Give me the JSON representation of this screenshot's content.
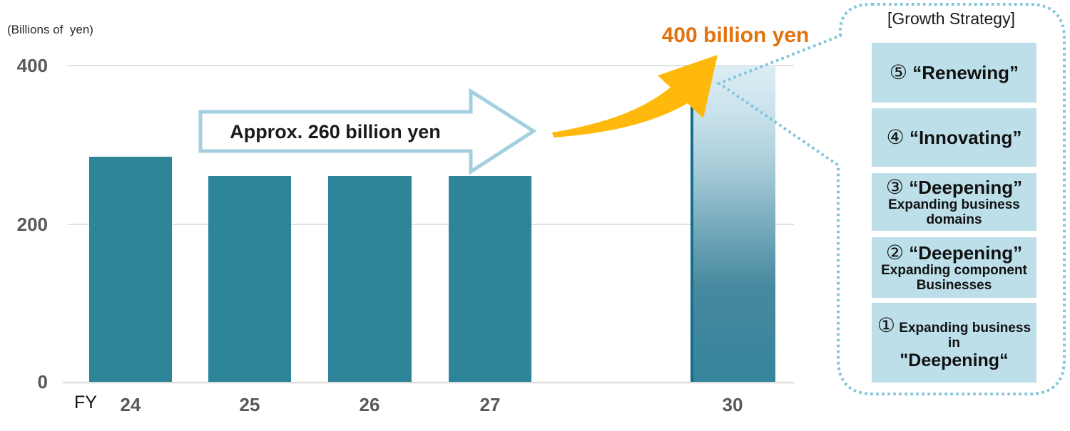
{
  "chart_data": {
    "type": "bar",
    "categories": [
      "FY24",
      "FY25",
      "FY26",
      "FY27",
      "FY30"
    ],
    "values": [
      285,
      260,
      260,
      260,
      400
    ],
    "x_axis_prefix": "FY",
    "x_ticks": [
      "24",
      "25",
      "26",
      "27",
      "30"
    ],
    "y_ticks": [
      "400",
      "200",
      "0"
    ],
    "ylim": [
      0,
      400
    ],
    "unit_label": "(Billions of  yen)",
    "grid": "horizontal gridlines at 0, 200, 400",
    "annotations": {
      "approx_label": "Approx. 260 billion yen",
      "target_label": "400 billion yen"
    }
  },
  "colors": {
    "bar_teal": "#2e8599",
    "projected_bar_gradient_top": "#dcedf4",
    "projected_bar_gradient_bottom": "#35859c",
    "projected_bar_edge": "#176e8a",
    "swoosh_arrow_yellow": "#ffb90d",
    "target_text_orange": "#e2720d",
    "block_arrow_outline": "#a3cfe0",
    "bubble_dotted_border": "#7fc5db",
    "growth_box_fill": "#bcdfea",
    "gridline": "#e0e0e0",
    "axis_text": "#595959"
  },
  "growth": {
    "header": "[Growth Strategy]",
    "box5": {
      "num": "⑤",
      "title": "“Renewing”"
    },
    "box4": {
      "num": "④",
      "title": "“Innovating”"
    },
    "box3": {
      "num": "③",
      "title": "“Deepening”",
      "sub1": "Expanding business",
      "sub2": "domains"
    },
    "box2": {
      "num": "②",
      "title": "“Deepening”",
      "sub1": "Expanding component",
      "sub2": "Businesses"
    },
    "box1": {
      "num": "①",
      "line1": "Expanding business",
      "line2": "in",
      "line3": "\"Deepening“"
    }
  }
}
